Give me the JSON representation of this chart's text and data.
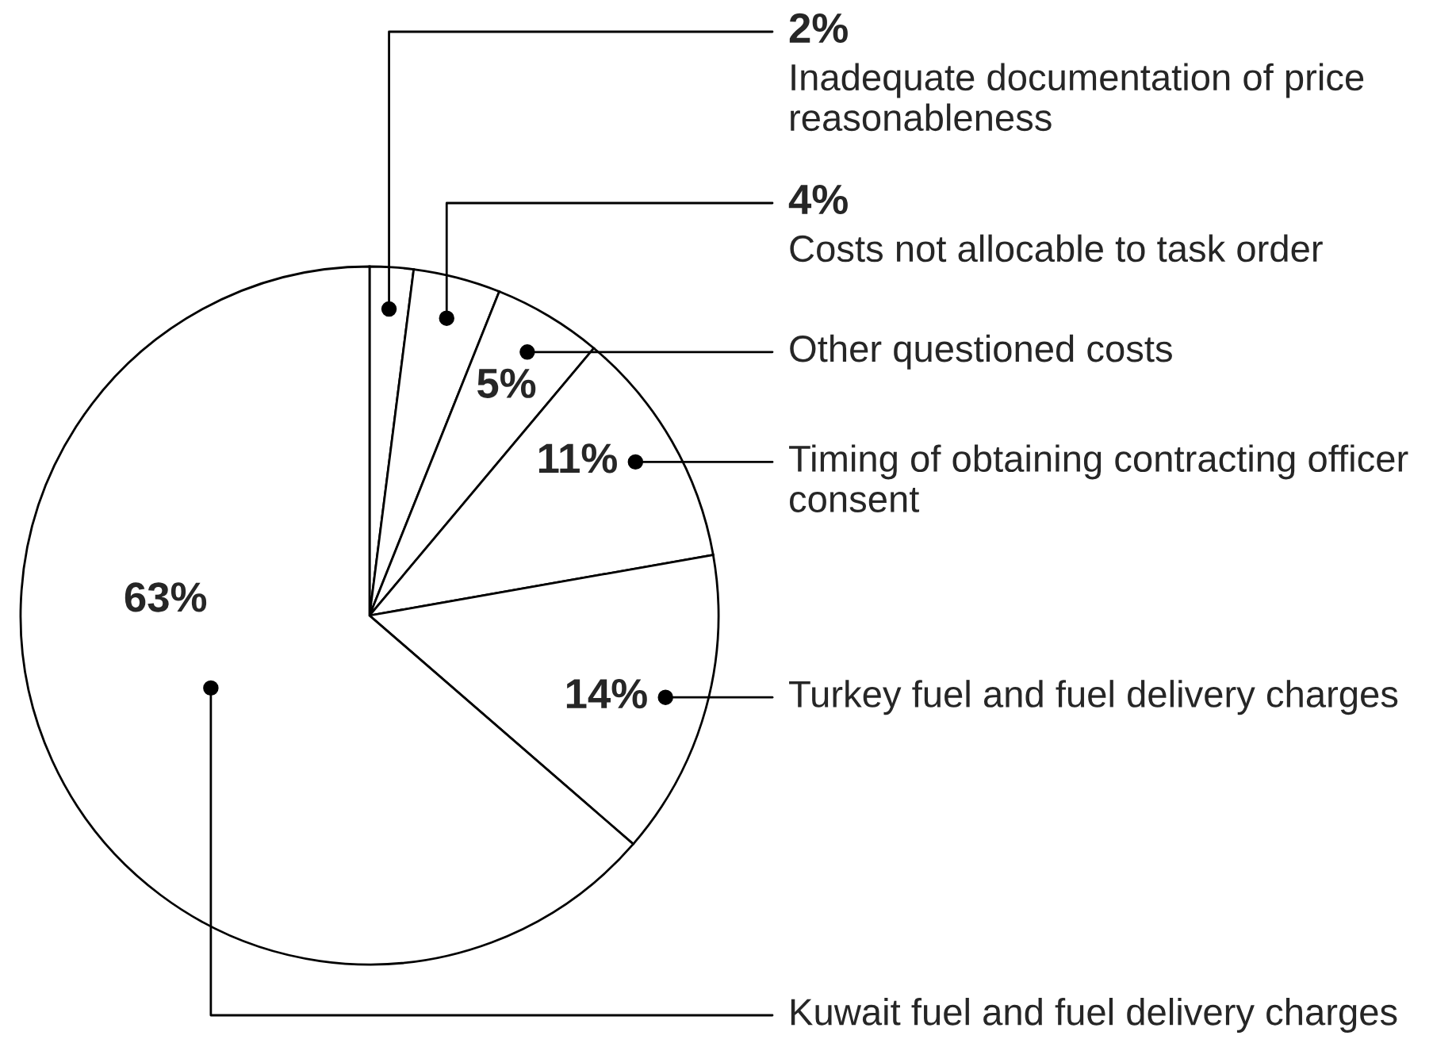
{
  "chart_data": {
    "type": "pie",
    "categories": [
      "Inadequate documentation of price reasonableness",
      "Costs not allocable to task order",
      "Other questioned costs",
      "Timing of obtaining contracting officer consent",
      "Turkey fuel and fuel delivery charges",
      "Kuwait fuel and fuel delivery charges"
    ],
    "values": [
      2,
      4,
      5,
      11,
      14,
      63
    ],
    "value_labels": [
      "2%",
      "4%",
      "5%",
      "11%",
      "14%",
      "63%"
    ],
    "colors": [
      "#ffffff",
      "#ffffff",
      "#ffffff",
      "#ffffff",
      "#ffffff",
      "#ffffff"
    ]
  }
}
